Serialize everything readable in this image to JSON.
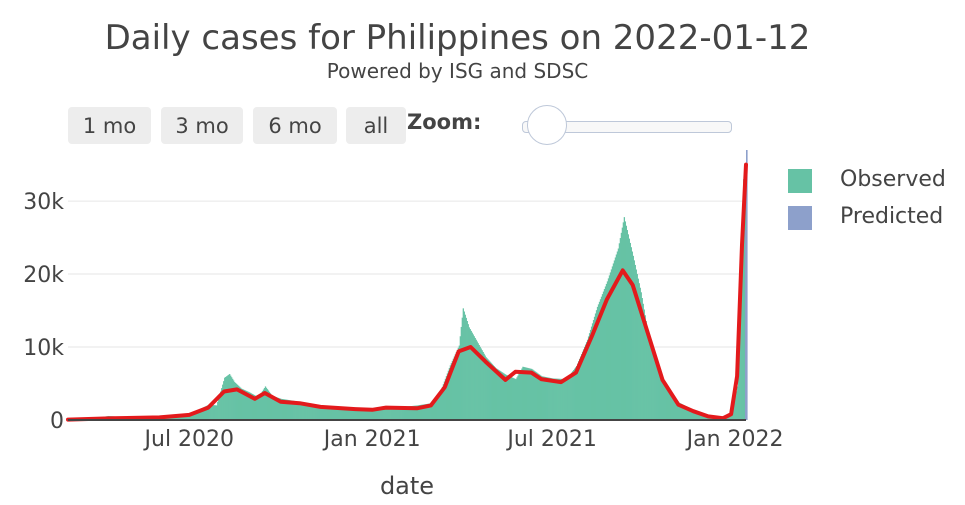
{
  "chart_data": {
    "type": "bar",
    "title": "Daily cases for Philippines on 2022-01-12",
    "subtitle": "Powered by ISG and SDSC",
    "xlabel": "date",
    "ylabel": "",
    "x_range": [
      "2020-03-01",
      "2022-01-12"
    ],
    "ylim": [
      0,
      37000
    ],
    "x_ticks": [
      {
        "date": "2020-07-01",
        "label": "Jul 2020"
      },
      {
        "date": "2021-01-01",
        "label": "Jan 2021"
      },
      {
        "date": "2021-07-01",
        "label": "Jul 2021"
      },
      {
        "date": "2022-01-01",
        "label": "Jan 2022"
      }
    ],
    "y_ticks": [
      {
        "value": 0,
        "label": "0"
      },
      {
        "value": 10000,
        "label": "10k"
      },
      {
        "value": 20000,
        "label": "20k"
      },
      {
        "value": 30000,
        "label": "30k"
      }
    ],
    "grid": true,
    "legend_position": "right",
    "series": [
      {
        "name": "Observed",
        "color": "#66c2a5",
        "points": [
          [
            "2020-03-01",
            10
          ],
          [
            "2020-03-15",
            150
          ],
          [
            "2020-04-01",
            350
          ],
          [
            "2020-04-10",
            550
          ],
          [
            "2020-04-25",
            400
          ],
          [
            "2020-05-10",
            300
          ],
          [
            "2020-05-25",
            350
          ],
          [
            "2020-06-05",
            550
          ],
          [
            "2020-06-20",
            800
          ],
          [
            "2020-07-01",
            900
          ],
          [
            "2020-07-10",
            1400
          ],
          [
            "2020-07-20",
            2100
          ],
          [
            "2020-07-28",
            2000
          ],
          [
            "2020-08-05",
            5800
          ],
          [
            "2020-08-10",
            6300
          ],
          [
            "2020-08-15",
            5200
          ],
          [
            "2020-08-22",
            4300
          ],
          [
            "2020-08-30",
            3800
          ],
          [
            "2020-09-08",
            3100
          ],
          [
            "2020-09-15",
            4600
          ],
          [
            "2020-09-22",
            3300
          ],
          [
            "2020-10-01",
            2900
          ],
          [
            "2020-10-15",
            2600
          ],
          [
            "2020-10-25",
            2100
          ],
          [
            "2020-11-05",
            2000
          ],
          [
            "2020-11-20",
            1700
          ],
          [
            "2020-12-05",
            1500
          ],
          [
            "2020-12-20",
            1400
          ],
          [
            "2021-01-01",
            1500
          ],
          [
            "2021-01-15",
            1900
          ],
          [
            "2021-02-01",
            1800
          ],
          [
            "2021-02-15",
            2000
          ],
          [
            "2021-03-01",
            2300
          ],
          [
            "2021-03-10",
            3800
          ],
          [
            "2021-03-20",
            7500
          ],
          [
            "2021-03-29",
            10200
          ],
          [
            "2021-04-02",
            15300
          ],
          [
            "2021-04-08",
            12700
          ],
          [
            "2021-04-15",
            11000
          ],
          [
            "2021-04-25",
            8600
          ],
          [
            "2021-05-05",
            7100
          ],
          [
            "2021-05-15",
            6200
          ],
          [
            "2021-05-25",
            5600
          ],
          [
            "2021-06-01",
            7300
          ],
          [
            "2021-06-10",
            7000
          ],
          [
            "2021-06-20",
            6000
          ],
          [
            "2021-07-01",
            5700
          ],
          [
            "2021-07-15",
            5600
          ],
          [
            "2021-07-25",
            7400
          ],
          [
            "2021-08-05",
            11000
          ],
          [
            "2021-08-15",
            15500
          ],
          [
            "2021-08-25",
            19000
          ],
          [
            "2021-09-05",
            23500
          ],
          [
            "2021-09-11",
            27800
          ],
          [
            "2021-09-20",
            22500
          ],
          [
            "2021-09-28",
            17500
          ],
          [
            "2021-10-05",
            12000
          ],
          [
            "2021-10-15",
            7000
          ],
          [
            "2021-10-25",
            4300
          ],
          [
            "2021-11-05",
            2400
          ],
          [
            "2021-11-15",
            1700
          ],
          [
            "2021-11-25",
            900
          ],
          [
            "2021-12-05",
            500
          ],
          [
            "2021-12-15",
            300
          ],
          [
            "2021-12-25",
            400
          ],
          [
            "2021-12-30",
            2000
          ],
          [
            "2022-01-03",
            4600
          ],
          [
            "2022-01-06",
            17000
          ],
          [
            "2022-01-08",
            28700
          ],
          [
            "2022-01-09",
            33000
          ],
          [
            "2022-01-10",
            28500
          ],
          [
            "2022-01-11",
            32000
          ]
        ]
      },
      {
        "name": "Predicted",
        "color": "#8da0cb",
        "points": [
          [
            "2022-01-11",
            26000
          ],
          [
            "2022-01-12",
            37000
          ]
        ]
      },
      {
        "name": "",
        "color": "#e31a1c",
        "points": [
          [
            "2020-03-01",
            50
          ],
          [
            "2020-04-15",
            250
          ],
          [
            "2020-06-01",
            350
          ],
          [
            "2020-07-01",
            700
          ],
          [
            "2020-07-20",
            1700
          ],
          [
            "2020-08-05",
            3900
          ],
          [
            "2020-08-18",
            4200
          ],
          [
            "2020-09-05",
            2900
          ],
          [
            "2020-09-15",
            3700
          ],
          [
            "2020-10-01",
            2500
          ],
          [
            "2020-10-20",
            2300
          ],
          [
            "2020-11-10",
            1800
          ],
          [
            "2020-12-15",
            1500
          ],
          [
            "2021-01-01",
            1400
          ],
          [
            "2021-01-15",
            1700
          ],
          [
            "2021-02-15",
            1600
          ],
          [
            "2021-03-01",
            2000
          ],
          [
            "2021-03-15",
            4500
          ],
          [
            "2021-03-29",
            9400
          ],
          [
            "2021-04-10",
            10000
          ],
          [
            "2021-04-25",
            8000
          ],
          [
            "2021-05-15",
            5500
          ],
          [
            "2021-05-25",
            6600
          ],
          [
            "2021-06-10",
            6500
          ],
          [
            "2021-06-20",
            5600
          ],
          [
            "2021-07-10",
            5200
          ],
          [
            "2021-07-25",
            6500
          ],
          [
            "2021-08-10",
            11500
          ],
          [
            "2021-08-25",
            16500
          ],
          [
            "2021-09-10",
            20500
          ],
          [
            "2021-09-20",
            18500
          ],
          [
            "2021-10-05",
            12000
          ],
          [
            "2021-10-20",
            5500
          ],
          [
            "2021-11-05",
            2100
          ],
          [
            "2021-11-20",
            1200
          ],
          [
            "2021-12-05",
            500
          ],
          [
            "2021-12-20",
            250
          ],
          [
            "2021-12-28",
            800
          ],
          [
            "2022-01-03",
            6000
          ],
          [
            "2022-01-08",
            24000
          ],
          [
            "2022-01-12",
            35000
          ]
        ]
      }
    ]
  },
  "range_buttons": [
    "1 mo",
    "3 mo",
    "6 mo",
    "all"
  ],
  "zoom_label": "Zoom:",
  "colors": {
    "observed": "#66c2a5",
    "predicted": "#8da0cb",
    "smoothed": "#e31a1c",
    "grid": "#e6e6e6",
    "text": "#444444"
  }
}
